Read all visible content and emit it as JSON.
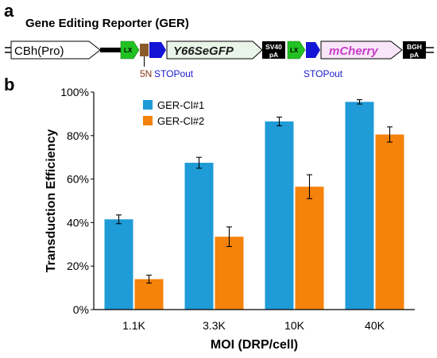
{
  "panel_a": {
    "label": "a",
    "title": "Gene Editing Reporter (GER)",
    "elements": {
      "promoter": "CBh(Pro)",
      "lox1": "LX",
      "spacer": "5N",
      "stopout1": "STOPout",
      "gene1": "Y66SeGFP",
      "polya1": [
        "SV40",
        "pA"
      ],
      "lox2": "LX",
      "stopout2": "STOPout",
      "gene2": "mCherry",
      "polya2": [
        "BGH",
        "pA"
      ]
    },
    "colors": {
      "lox": "#22c222",
      "spacer": "#8b5a2b",
      "stop": "#1515d6",
      "gfp_box": "#e8f5e8",
      "cherry_box": "#f8e6f8",
      "cherry_text": "#c83cc8",
      "polya": "#000000",
      "spacer_text": "#8b3a14",
      "stop_text": "#1a1ad0"
    }
  },
  "chart_data": {
    "panel_label": "b",
    "type": "bar",
    "categories": [
      "1.1K",
      "3.3K",
      "10K",
      "40K"
    ],
    "series": [
      {
        "name": "GER-Cl#1",
        "color": "#1f9bd7",
        "values": [
          41.5,
          67.5,
          86.5,
          95.5
        ],
        "errors": [
          2,
          2.5,
          2,
          1
        ]
      },
      {
        "name": "GER-Cl#2",
        "color": "#f5820a",
        "values": [
          14,
          33.5,
          56.5,
          80.5
        ],
        "errors": [
          1.8,
          4.5,
          5.5,
          3.5
        ]
      }
    ],
    "xlabel": "MOI (DRP/cell)",
    "ylabel": "Transduction Efficiency",
    "ylim": [
      0,
      100
    ],
    "yticks": [
      "0%",
      "20%",
      "40%",
      "60%",
      "80%",
      "100%"
    ],
    "legend_position": "top-left",
    "grid": false
  }
}
